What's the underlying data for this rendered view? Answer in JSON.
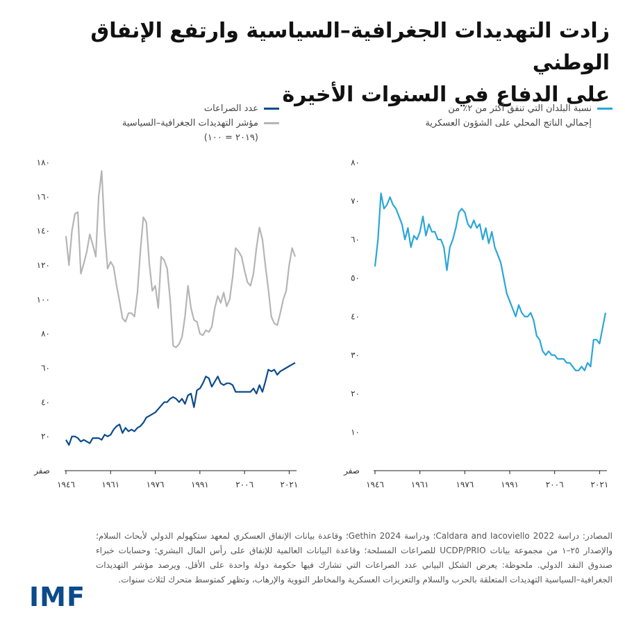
{
  "title_line1": "زادت التهديدات الجغرافية–السياسية وارتفع الإنفاق الوطني",
  "title_line2": "على الدفاع في السنوات الأخيرة",
  "colors": {
    "conflicts": "#0b4a8b",
    "gpr": "#b5b5b5",
    "defense": "#2aa6d8",
    "logo": "#0b4a8b"
  },
  "chart_data": [
    {
      "type": "line",
      "legend": {
        "conflicts": "عدد الصراعات",
        "gpr_line1": "مؤشر التهديدات الجغرافية–السياسية",
        "gpr_line2": "(٢٠١٩ = ١٠٠)"
      },
      "xlim": [
        1946,
        2023
      ],
      "ylim": [
        0,
        180
      ],
      "x_ticks": [
        1946,
        1961,
        1976,
        1991,
        2006,
        2021
      ],
      "x_tick_labels": [
        "١٩٤٦",
        "١٩٦١",
        "١٩٧٦",
        "١٩٩١",
        "٢٠٠٦",
        "٢٠٢١"
      ],
      "y_ticks": [
        0,
        20,
        40,
        60,
        80,
        100,
        120,
        140,
        160,
        180
      ],
      "y_tick_labels": [
        "صفر",
        "٢٠",
        "٤٠",
        "٦٠",
        "٨٠",
        "١٠٠",
        "١٢٠",
        "١٤٠",
        "١٦٠",
        "١٨٠"
      ],
      "series": [
        {
          "name": "عدد الصراعات",
          "x": [
            1946,
            1947,
            1948,
            1949,
            1950,
            1951,
            1952,
            1953,
            1954,
            1955,
            1956,
            1957,
            1958,
            1959,
            1960,
            1961,
            1962,
            1963,
            1964,
            1965,
            1966,
            1967,
            1968,
            1969,
            1970,
            1971,
            1972,
            1973,
            1974,
            1975,
            1976,
            1977,
            1978,
            1979,
            1980,
            1981,
            1982,
            1983,
            1984,
            1985,
            1986,
            1987,
            1988,
            1989,
            1990,
            1991,
            1992,
            1993,
            1994,
            1995,
            1996,
            1997,
            1998,
            1999,
            2000,
            2001,
            2002,
            2003,
            2004,
            2005,
            2006,
            2007,
            2008,
            2009,
            2010,
            2011,
            2012,
            2013,
            2014,
            2015,
            2016,
            2017,
            2018,
            2019,
            2020,
            2021,
            2022,
            2023
          ],
          "values": [
            18,
            15,
            20,
            20,
            19,
            17,
            18,
            17,
            16,
            19,
            19,
            19,
            18,
            21,
            20,
            21,
            24,
            26,
            27,
            22,
            25,
            23,
            24,
            23,
            25,
            26,
            28,
            31,
            32,
            33,
            34,
            36,
            38,
            40,
            40,
            42,
            43,
            42,
            40,
            42,
            39,
            44,
            45,
            37,
            47,
            48,
            51,
            55,
            54,
            49,
            52,
            55,
            51,
            50,
            51,
            51,
            50,
            46,
            46,
            46,
            46,
            46,
            46,
            48,
            45,
            50,
            46,
            52,
            59,
            58,
            59,
            56,
            58,
            59,
            60,
            61,
            62,
            63
          ]
        },
        {
          "name": "مؤشر التهديدات الجغرافية–السياسية",
          "x": [
            1946,
            1947,
            1948,
            1949,
            1950,
            1951,
            1952,
            1953,
            1954,
            1955,
            1956,
            1957,
            1958,
            1959,
            1960,
            1961,
            1962,
            1963,
            1964,
            1965,
            1966,
            1967,
            1968,
            1969,
            1970,
            1971,
            1972,
            1973,
            1974,
            1975,
            1976,
            1977,
            1978,
            1979,
            1980,
            1981,
            1982,
            1983,
            1984,
            1985,
            1986,
            1987,
            1988,
            1989,
            1990,
            1991,
            1992,
            1993,
            1994,
            1995,
            1996,
            1997,
            1998,
            1999,
            2000,
            2001,
            2002,
            2003,
            2004,
            2005,
            2006,
            2007,
            2008,
            2009,
            2010,
            2011,
            2012,
            2013,
            2014,
            2015,
            2016,
            2017,
            2018,
            2019,
            2020,
            2021,
            2022,
            2023
          ],
          "values": [
            137,
            120,
            140,
            150,
            151,
            115,
            121,
            128,
            138,
            132,
            125,
            160,
            175,
            140,
            118,
            122,
            119,
            108,
            99,
            89,
            87,
            92,
            92,
            90,
            104,
            128,
            148,
            145,
            121,
            105,
            108,
            95,
            125,
            123,
            118,
            100,
            73,
            72,
            74,
            78,
            90,
            108,
            95,
            88,
            87,
            80,
            79,
            82,
            81,
            84,
            95,
            102,
            98,
            104,
            96,
            100,
            113,
            130,
            128,
            125,
            117,
            110,
            108,
            115,
            130,
            142,
            135,
            120,
            106,
            90,
            86,
            85,
            92,
            100,
            105,
            120,
            130,
            125
          ]
        }
      ]
    },
    {
      "type": "line",
      "legend": {
        "defense_line1": "نسبة البلدان التي تنفق أكثر من ٢٪ من",
        "defense_line2": "إجمالي الناتج المحلي على الشؤون العسكرية"
      },
      "xlim": [
        1946,
        2023
      ],
      "ylim": [
        0,
        80
      ],
      "x_ticks": [
        1946,
        1961,
        1976,
        1991,
        2006,
        2021
      ],
      "x_tick_labels": [
        "١٩٤٦",
        "١٩٦١",
        "١٩٧٦",
        "١٩٩١",
        "٢٠٠٦",
        "٢٠٢١"
      ],
      "y_ticks": [
        0,
        10,
        20,
        30,
        40,
        50,
        60,
        70,
        80
      ],
      "y_tick_labels": [
        "صفر",
        "١٠",
        "٢٠",
        "٣٠",
        "٤٠",
        "٥٠",
        "٦٠",
        "٧٠",
        "٨٠"
      ],
      "series": [
        {
          "name": "نسبة البلدان التي تنفق أكثر من ٢٪ من إجمالي الناتج المحلي على الشؤون العسكرية",
          "x": [
            1946,
            1947,
            1948,
            1949,
            1950,
            1951,
            1952,
            1953,
            1954,
            1955,
            1956,
            1957,
            1958,
            1959,
            1960,
            1961,
            1962,
            1963,
            1964,
            1965,
            1966,
            1967,
            1968,
            1969,
            1970,
            1971,
            1972,
            1973,
            1974,
            1975,
            1976,
            1977,
            1978,
            1979,
            1980,
            1981,
            1982,
            1983,
            1984,
            1985,
            1986,
            1987,
            1988,
            1989,
            1990,
            1991,
            1992,
            1993,
            1994,
            1995,
            1996,
            1997,
            1998,
            1999,
            2000,
            2001,
            2002,
            2003,
            2004,
            2005,
            2006,
            2007,
            2008,
            2009,
            2010,
            2011,
            2012,
            2013,
            2014,
            2015,
            2016,
            2017,
            2018,
            2019,
            2020,
            2021,
            2022,
            2023
          ],
          "values": [
            53,
            60,
            72,
            68,
            69,
            71,
            69,
            68,
            66,
            64,
            60,
            63,
            58,
            61,
            60,
            62,
            66,
            61,
            64,
            62,
            62,
            60,
            60,
            58,
            52,
            58,
            60,
            63,
            67,
            68,
            67,
            64,
            63,
            65,
            63,
            64,
            60,
            63,
            59,
            62,
            58,
            56,
            54,
            50,
            46,
            44,
            42,
            40,
            43,
            41,
            40,
            40,
            41,
            39,
            35,
            34,
            31,
            30,
            31,
            30,
            30,
            29,
            29,
            29,
            28,
            28,
            27,
            26,
            26,
            27,
            26,
            28,
            27,
            34,
            34,
            33,
            37,
            41
          ]
        }
      ]
    }
  ],
  "source_text": "المصادر: دراسة Caldara and Iacoviello 2022؛ ودراسة Gethin 2024؛ وقاعدة بيانات الإنفاق العسكري لمعهد ستكهولم الدولي لأبحاث السلام؛ والإصدار ٢٥–١ من مجموعة بيانات UCDP/PRIO للصراعات المسلحة؛ وقاعدة البيانات العالمية للإنفاق على رأس المال البشري؛ وحسابات خبراء صندوق النقد الدولي. ملحوظة: يعرض الشكل البياني عدد الصراعات التي تشارك فيها حكومة دولة واحدة على الأقل. ويرصد مؤشر التهديدات الجغرافية–السياسية التهديدات المتعلقة بالحرب والسلام والتعزيزات العسكرية والمخاطر النووية والإرهاب، وتظهر كمتوسط متحرك لثلاث سنوات.",
  "logo_text": "IMF"
}
